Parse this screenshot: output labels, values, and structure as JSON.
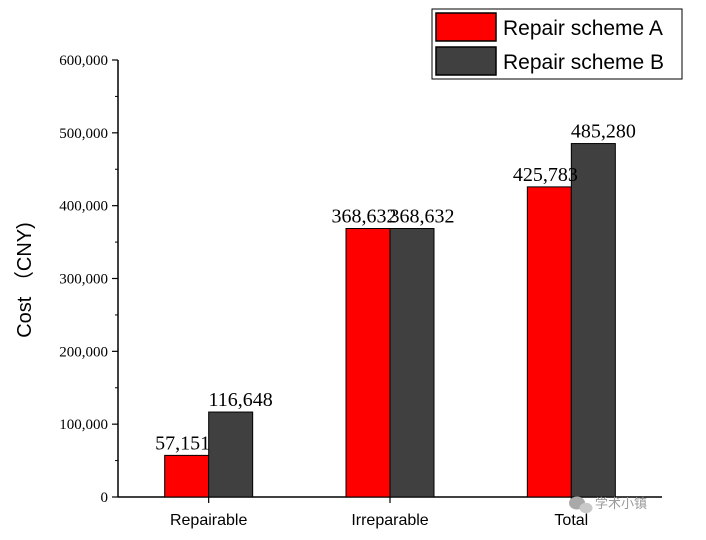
{
  "chart_data": {
    "type": "bar",
    "categories": [
      "Repairable",
      "Irreparable",
      "Total"
    ],
    "series": [
      {
        "name": "Repair scheme A",
        "color": "#ff0000",
        "values": [
          57151,
          368632,
          425783
        ]
      },
      {
        "name": "Repair scheme B",
        "color": "#404040",
        "values": [
          116648,
          368632,
          485280
        ]
      }
    ],
    "data_labels": [
      [
        "57,151",
        "368,632",
        "425,783"
      ],
      [
        "116,648",
        "368,632",
        "485,280"
      ]
    ],
    "xlabel": "",
    "ylabel": "Cost （CNY)",
    "ylim": [
      0,
      600000
    ],
    "yticks": [
      0,
      100000,
      200000,
      300000,
      400000,
      500000,
      600000
    ],
    "ytick_labels": [
      "0",
      "100,000",
      "200,000",
      "300,000",
      "400,000",
      "500,000",
      "600,000"
    ],
    "grid": false,
    "legend_position": "top-right"
  },
  "watermark": {
    "text": "学术小镇",
    "icon": "wechat-icon"
  }
}
